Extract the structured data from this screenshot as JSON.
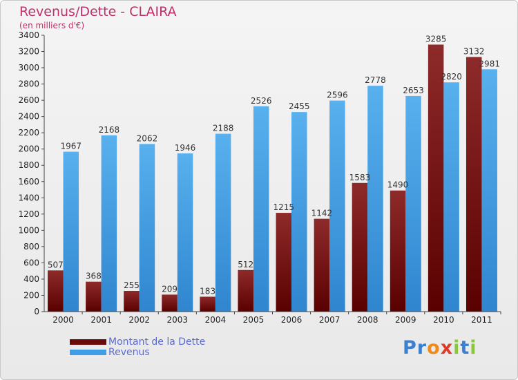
{
  "header": {
    "title": "Revenus/Dette - CLAIRA",
    "subtitle": "(en milliers d'€)"
  },
  "legend": {
    "items": [
      {
        "label": "Montant de la Dette",
        "color": "#7a1010"
      },
      {
        "label": "Revenus",
        "color": "#3f9ee6"
      }
    ]
  },
  "logo": {
    "text": "Proxiti"
  },
  "chart_data": {
    "type": "bar",
    "title": "Revenus/Dette - CLAIRA",
    "subtitle": "(en milliers d'€)",
    "categories": [
      "2000",
      "2001",
      "2002",
      "2003",
      "2004",
      "2005",
      "2006",
      "2007",
      "2008",
      "2009",
      "2010",
      "2011"
    ],
    "series": [
      {
        "name": "Montant de la Dette",
        "values": [
          507,
          368,
          255,
          209,
          183,
          512,
          1215,
          1142,
          1583,
          1490,
          3285,
          3132
        ],
        "color": "#7a1010"
      },
      {
        "name": "Revenus",
        "values": [
          1967,
          2168,
          2062,
          1946,
          2188,
          2526,
          2455,
          2596,
          2778,
          2653,
          2820,
          2981
        ],
        "color": "#3f9ee6"
      }
    ],
    "yticks": [
      0,
      200,
      400,
      600,
      800,
      1000,
      1200,
      1400,
      1600,
      1800,
      2000,
      2200,
      2400,
      2600,
      2800,
      3000,
      3200,
      3400
    ],
    "ylim": [
      0,
      3400
    ],
    "xlabel": "",
    "ylabel": "",
    "grid": false,
    "legend_position": "bottom-left"
  }
}
